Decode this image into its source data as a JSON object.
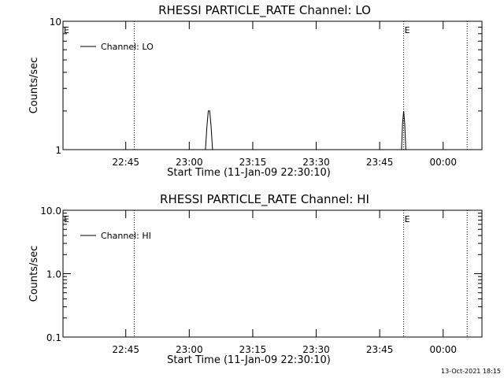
{
  "timestamp": "13-Oct-2021 18:15",
  "colors": {
    "background": "#ffffff",
    "foreground": "#000000"
  },
  "chart_data": [
    {
      "type": "line",
      "title": "RHESSI PARTICLE_RATE Channel: LO",
      "xlabel": "Start Time (11-Jan-09 22:30:10)",
      "ylabel": "Counts/sec",
      "y_scale": "log",
      "ylim": [
        1,
        10
      ],
      "y_ticks": [
        1,
        10
      ],
      "y_tick_labels": [
        "1",
        "10"
      ],
      "xlim": [
        "22:30:10",
        "00:09:10"
      ],
      "x_ticks": [
        "22:45",
        "23:00",
        "23:15",
        "23:30",
        "23:45",
        "00:00"
      ],
      "x_tick_labels": [
        "22:45",
        "23:00",
        "23:15",
        "23:30",
        "23:45",
        "00:00"
      ],
      "vlines": [
        "22:47:00",
        "23:50:40",
        "00:05:40"
      ],
      "vline_style": "dotted",
      "event_markers": [
        {
          "label": "E",
          "x": "22:30:10"
        },
        {
          "label": "E",
          "x": "23:50:40"
        }
      ],
      "legend": {
        "position": "top-left",
        "entries": [
          "Channel: LO"
        ]
      },
      "series": [
        {
          "name": "Channel: LO",
          "x": [
            "23:03:50",
            "23:04:10",
            "23:04:30",
            "23:04:50",
            "23:05:10",
            "23:05:30",
            "23:05:50",
            "23:50:10",
            "23:50:25",
            "23:50:40",
            "23:50:55",
            "23:51:10"
          ],
          "values": [
            1,
            1.5,
            2,
            2,
            1.5,
            1,
            1,
            1,
            1.6,
            2,
            1.6,
            1
          ]
        }
      ]
    },
    {
      "type": "line",
      "title": "RHESSI PARTICLE_RATE Channel: HI",
      "xlabel": "Start Time (11-Jan-09 22:30:10)",
      "ylabel": "Counts/sec",
      "y_scale": "log",
      "ylim": [
        0.1,
        10
      ],
      "y_ticks": [
        0.1,
        1,
        10
      ],
      "y_tick_labels": [
        "0.1",
        "1.0",
        "10.0"
      ],
      "xlim": [
        "22:30:10",
        "00:09:10"
      ],
      "x_ticks": [
        "22:45",
        "23:00",
        "23:15",
        "23:30",
        "23:45",
        "00:00"
      ],
      "x_tick_labels": [
        "22:45",
        "23:00",
        "23:15",
        "23:30",
        "23:45",
        "00:00"
      ],
      "vlines": [
        "22:47:00",
        "23:50:40",
        "00:05:40"
      ],
      "vline_style": "dotted",
      "event_markers": [
        {
          "label": "E",
          "x": "22:30:10"
        },
        {
          "label": "E",
          "x": "23:50:40"
        }
      ],
      "legend": {
        "position": "top-left",
        "entries": [
          "Channel: HI"
        ]
      },
      "series": [
        {
          "name": "Channel: HI",
          "x": [],
          "values": []
        }
      ]
    }
  ]
}
